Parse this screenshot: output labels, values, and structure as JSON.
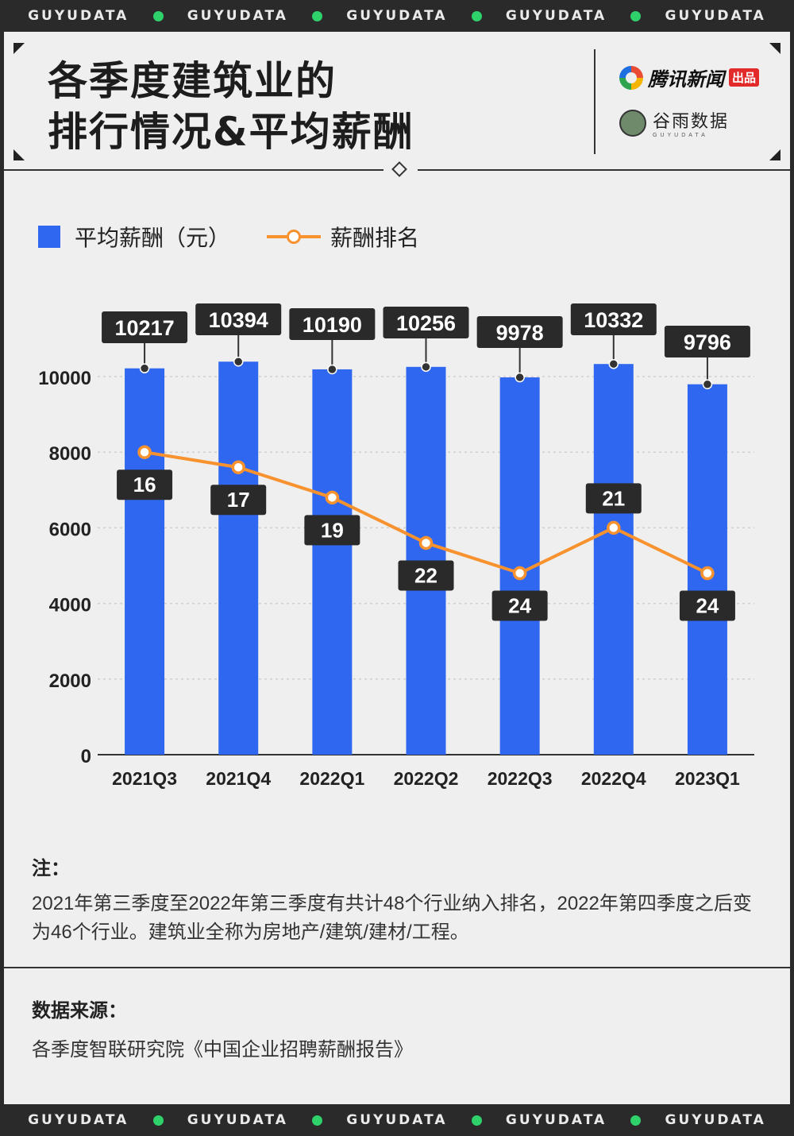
{
  "ticker": {
    "word": "GUYUDATA",
    "dot_color": "#2ed16a"
  },
  "header": {
    "title_line1": "各季度建筑业的",
    "title_line2": "排行情况&平均薪酬",
    "brand1_name": "腾讯新闻",
    "brand1_tag": "出品",
    "brand2_name": "谷雨数据",
    "brand2_sub": "GUYUDATA"
  },
  "legend": {
    "bar_label": "平均薪酬（元）",
    "line_label": "薪酬排名"
  },
  "chart_data": {
    "type": "bar+line",
    "categories": [
      "2021Q3",
      "2021Q4",
      "2022Q1",
      "2022Q2",
      "2022Q3",
      "2022Q4",
      "2023Q1"
    ],
    "series": [
      {
        "name": "平均薪酬（元）",
        "type": "bar",
        "color": "#2f67f0",
        "values": [
          10217,
          10394,
          10190,
          10256,
          9978,
          10332,
          9796
        ]
      },
      {
        "name": "薪酬排名",
        "type": "line",
        "color": "#f7922e",
        "values": [
          16,
          17,
          19,
          22,
          24,
          21,
          24
        ]
      }
    ],
    "yaxis": {
      "ticks": [
        0,
        2000,
        4000,
        6000,
        8000,
        10000
      ],
      "ylim": [
        0,
        10700
      ]
    },
    "rank_axis": {
      "ylim": [
        36,
        11
      ]
    },
    "grid": true,
    "label_color": "#222222"
  },
  "note": {
    "heading": "注：",
    "body": "2021年第三季度至2022年第三季度有共计48个行业纳入排名，2022年第四季度之后变为46个行业。建筑业全称为房地产/建筑/建材/工程。"
  },
  "source": {
    "heading": "数据来源：",
    "body": "各季度智联研究院《中国企业招聘薪酬报告》"
  }
}
